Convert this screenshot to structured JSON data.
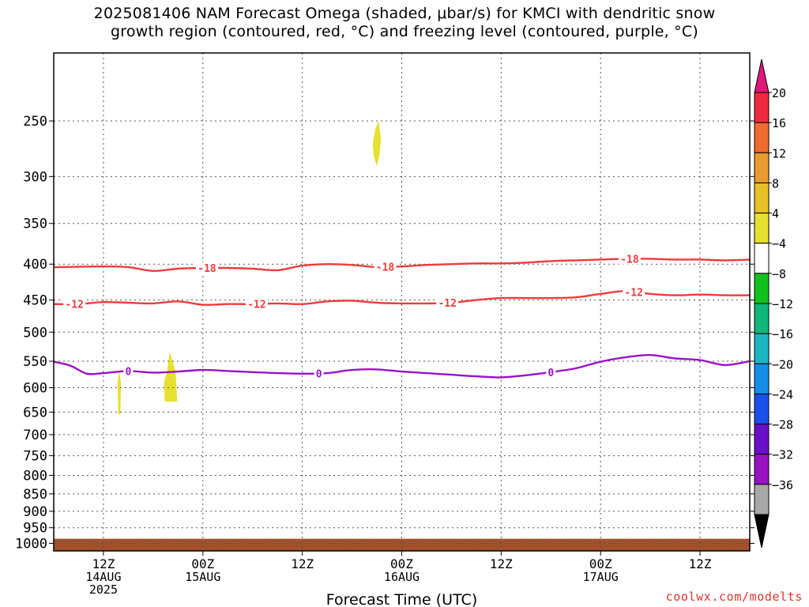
{
  "title": {
    "line1": "2025081406 NAM Forecast Omega (shaded, μbar/s) for KMCI with dendritic snow",
    "line2": "growth region (contoured, red, °C) and freezing level (contoured, purple, °C)"
  },
  "footer": "coolwx.com/modelts",
  "chart_data": {
    "type": "time-height cross section",
    "xlabel": "Forecast Time (UTC)",
    "x_range_hours": [
      0,
      84
    ],
    "x_ticks": [
      {
        "h": 6,
        "lines": [
          "12Z",
          "14AUG",
          "2025"
        ]
      },
      {
        "h": 18,
        "lines": [
          "00Z",
          "15AUG"
        ]
      },
      {
        "h": 30,
        "lines": [
          "12Z"
        ]
      },
      {
        "h": 42,
        "lines": [
          "00Z",
          "16AUG"
        ]
      },
      {
        "h": 54,
        "lines": [
          "12Z"
        ]
      },
      {
        "h": 66,
        "lines": [
          "00Z",
          "17AUG"
        ]
      },
      {
        "h": 78,
        "lines": [
          "12Z"
        ]
      }
    ],
    "y_scale": "log pressure",
    "y_range_hPa": [
      1025,
      200
    ],
    "y_ticks": [
      250,
      300,
      350,
      400,
      450,
      500,
      550,
      600,
      650,
      700,
      750,
      800,
      850,
      900,
      950,
      1000
    ],
    "grid": true,
    "ground": {
      "color": "#a0522d",
      "from_hPa": 1025,
      "to_hPa": 985
    },
    "colorbar": {
      "labels": [
        "20",
        "16",
        "12",
        "8",
        "4",
        "-4",
        "-8",
        "-12",
        "-16",
        "-20",
        "-24",
        "-28",
        "-32",
        "-36"
      ],
      "colors": [
        "#ee2a40",
        "#ef6b2e",
        "#e99a30",
        "#e8c028",
        "#e6e030",
        "#ffffff",
        "#12c11e",
        "#10b67a",
        "#1ab6c0",
        "#138fe6",
        "#1a50ea",
        "#6a0fc9",
        "#9a12c2",
        "#a8a8a8"
      ],
      "top_arrow_color": "#e0187a",
      "bottom_arrow_color": "#000000"
    },
    "contours": [
      {
        "label": "-18",
        "color": "#ee3b3b",
        "points": [
          [
            0,
            404
          ],
          [
            6,
            403
          ],
          [
            9,
            404
          ],
          [
            12,
            409
          ],
          [
            15,
            406
          ],
          [
            18,
            405
          ],
          [
            21,
            405
          ],
          [
            24,
            406
          ],
          [
            27,
            408
          ],
          [
            30,
            402
          ],
          [
            33,
            400
          ],
          [
            36,
            401
          ],
          [
            39,
            404
          ],
          [
            42,
            403
          ],
          [
            45,
            401
          ],
          [
            48,
            400
          ],
          [
            51,
            399
          ],
          [
            54,
            399
          ],
          [
            57,
            398
          ],
          [
            60,
            396
          ],
          [
            63,
            395
          ],
          [
            66,
            394
          ],
          [
            69,
            393
          ],
          [
            72,
            393
          ],
          [
            75,
            394
          ],
          [
            78,
            394
          ],
          [
            81,
            395
          ],
          [
            84,
            394
          ]
        ],
        "label_hours": [
          18.5,
          40,
          69.5
        ]
      },
      {
        "label": "-12",
        "color": "#ee3b3b",
        "points": [
          [
            0,
            456
          ],
          [
            3,
            456
          ],
          [
            6,
            453
          ],
          [
            9,
            454
          ],
          [
            12,
            455
          ],
          [
            15,
            452
          ],
          [
            18,
            457
          ],
          [
            21,
            456
          ],
          [
            24,
            456
          ],
          [
            27,
            455
          ],
          [
            30,
            456
          ],
          [
            33,
            452
          ],
          [
            36,
            451
          ],
          [
            39,
            454
          ],
          [
            42,
            455
          ],
          [
            45,
            455
          ],
          [
            48,
            454
          ],
          [
            51,
            450
          ],
          [
            54,
            447
          ],
          [
            57,
            447
          ],
          [
            60,
            447
          ],
          [
            63,
            446
          ],
          [
            66,
            441
          ],
          [
            69,
            437
          ],
          [
            72,
            441
          ],
          [
            75,
            443
          ],
          [
            78,
            442
          ],
          [
            81,
            443
          ],
          [
            84,
            443
          ]
        ],
        "label_hours": [
          2.5,
          24.5,
          47.5,
          70
        ]
      },
      {
        "label": "0",
        "color": "#9a12c8",
        "points": [
          [
            0,
            551
          ],
          [
            2,
            558
          ],
          [
            4,
            573
          ],
          [
            6,
            572
          ],
          [
            9,
            568
          ],
          [
            12,
            571
          ],
          [
            15,
            569
          ],
          [
            18,
            566
          ],
          [
            21,
            568
          ],
          [
            24,
            570
          ],
          [
            27,
            572
          ],
          [
            30,
            573
          ],
          [
            33,
            572
          ],
          [
            36,
            566
          ],
          [
            39,
            565
          ],
          [
            42,
            569
          ],
          [
            45,
            572
          ],
          [
            48,
            575
          ],
          [
            51,
            578
          ],
          [
            54,
            580
          ],
          [
            57,
            576
          ],
          [
            60,
            570
          ],
          [
            63,
            563
          ],
          [
            66,
            551
          ],
          [
            69,
            543
          ],
          [
            72,
            539
          ],
          [
            75,
            545
          ],
          [
            78,
            548
          ],
          [
            81,
            557
          ],
          [
            84,
            550
          ]
        ],
        "label_hours": [
          9,
          32,
          60
        ]
      }
    ],
    "shaded_regions": [
      {
        "value_range": "4 to 8",
        "color": "#e6e030",
        "points": [
          [
            7.7,
            590
          ],
          [
            7.9,
            567
          ],
          [
            8.1,
            590
          ],
          [
            8.05,
            655
          ],
          [
            7.8,
            655
          ]
        ]
      },
      {
        "value_range": "4 to 8",
        "color": "#e6e030",
        "points": [
          [
            13.3,
            590
          ],
          [
            13.7,
            567
          ],
          [
            14.0,
            533
          ],
          [
            14.7,
            568
          ],
          [
            14.9,
            628
          ],
          [
            13.4,
            628
          ]
        ]
      },
      {
        "value_range": "4 to 8",
        "color": "#e6e030",
        "points": [
          [
            38.5,
            270
          ],
          [
            38.8,
            257
          ],
          [
            39.2,
            250
          ],
          [
            39.5,
            265
          ],
          [
            39.3,
            280
          ],
          [
            39.0,
            290
          ],
          [
            38.6,
            280
          ]
        ]
      }
    ]
  }
}
